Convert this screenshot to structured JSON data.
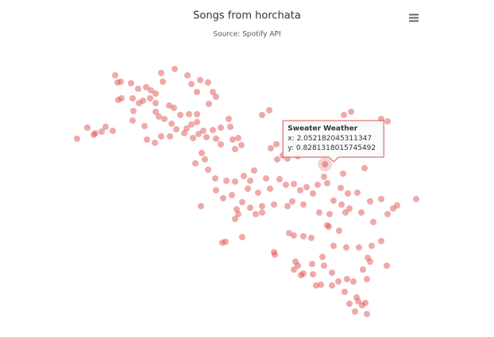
{
  "chart_data": {
    "type": "scatter",
    "title": "Songs from horchata",
    "subtitle": "Source: Spotify API",
    "color": "rgba(223,83,83,0.5)",
    "xlim": [
      -1.14,
      3.26
    ],
    "ylim": [
      -1.1,
      2.1
    ],
    "x": [
      -0.59,
      -0.56,
      -0.52,
      -0.39,
      -0.3,
      -0.2,
      -0.14,
      -0.08,
      -0.01,
      0.01,
      0.16,
      0.32,
      0.37,
      0.48,
      0.58,
      0.44,
      0.64,
      0.68,
      0.59,
      -0.55,
      -0.51,
      -0.37,
      -0.29,
      -0.24,
      -0.15,
      -0.08,
      0.09,
      0.15,
      0.23,
      0.34,
      0.44,
      0.44,
      0.37,
      -0.36,
      -0.37,
      -0.22,
      -0.08,
      -0.04,
      0.03,
      0.12,
      0.18,
      0.31,
      0.52,
      0.64,
      0.74,
      0.84,
      0.86,
      0.96,
      0.89,
      1.0,
      0.92,
      -0.19,
      -0.09,
      -0.01,
      0.1,
      0.28,
      0.39,
      0.46,
      0.56,
      -0.94,
      -0.86,
      -0.84,
      -0.76,
      -0.71,
      -0.62,
      -1.07,
      1.26,
      1.35,
      0.68,
      0.74,
      0.5,
      0.54,
      0.42,
      0.58,
      0.67,
      0.68,
      0.81,
      0.92,
      0.88,
      0.49,
      0.77,
      0.94,
      1.03,
      1.11,
      1.08,
      1.21,
      1.16,
      1.31,
      1.36,
      1.48,
      1.56,
      1.66,
      1.74,
      1.82,
      1.9,
      1.96,
      2.08,
      2.04,
      2.28,
      2.25,
      2.34,
      2.46,
      2.55,
      2.62,
      2.76,
      2.91,
      2.96,
      3.2,
      2.84,
      2.66,
      2.51,
      2.36,
      2.31,
      2.26,
      2.16,
      2.11,
      2.1,
      1.98,
      1.78,
      1.64,
      1.58,
      1.41,
      1.26,
      1.11,
      1.01,
      0.96,
      1.18,
      1.26,
      0.92,
      1.01,
      0.76,
      0.8,
      1.45,
      1.58,
      1.71,
      2.052182045311347,
      2.29,
      2.38,
      2.76,
      2.84,
      1.37,
      1.44,
      1.52,
      1.6,
      1.66,
      1.78,
      1.88,
      2.08,
      2.23,
      1.41,
      1.42,
      1.68,
      1.71,
      1.78,
      1.9,
      1.89,
      2.02,
      2.04,
      2.16,
      2.32,
      2.48,
      2.64,
      2.76,
      2.83,
      2.59,
      2.62,
      2.53,
      2.58,
      2.41,
      2.33,
      2.22,
      2.14,
      2.0,
      1.94,
      2.14,
      2.3,
      2.45,
      2.47,
      2.52,
      2.56,
      2.43,
      2.58,
      2.36,
      1.75,
      1.66
    ],
    "values": [
      1.95,
      1.86,
      1.87,
      1.85,
      1.78,
      1.8,
      1.76,
      1.72,
      1.98,
      1.87,
      2.03,
      1.95,
      1.84,
      1.89,
      1.86,
      1.74,
      1.74,
      1.68,
      1.59,
      1.64,
      1.66,
      1.66,
      1.6,
      1.63,
      1.66,
      1.6,
      1.57,
      1.54,
      1.45,
      1.46,
      1.46,
      1.36,
      1.33,
      1.5,
      1.38,
      1.31,
      1.49,
      1.43,
      1.4,
      1.34,
      1.27,
      1.28,
      1.25,
      1.26,
      1.29,
      1.4,
      1.3,
      1.16,
      1.14,
      1.07,
      1.02,
      1.14,
      1.1,
      1.18,
      1.18,
      1.22,
      1.16,
      1.21,
      1.17,
      1.29,
      1.2,
      1.22,
      1.24,
      1.3,
      1.25,
      1.15,
      1.45,
      1.51,
      1.15,
      1.08,
      0.97,
      0.89,
      0.84,
      0.76,
      0.65,
      0.5,
      0.62,
      0.61,
      0.44,
      0.3,
      0.4,
      0.26,
      0.68,
      0.62,
      0.52,
      0.47,
      0.75,
      0.65,
      0.52,
      0.64,
      0.57,
      0.58,
      0.5,
      0.54,
      0.46,
      0.57,
      0.59,
      0.67,
      0.71,
      0.53,
      0.46,
      0.47,
      0.78,
      0.36,
      0.39,
      0.27,
      0.31,
      0.39,
      0.2,
      0.1,
      0.22,
      0.27,
      0.22,
      0.32,
      0.37,
      0.2,
      0.04,
      0.22,
      0.32,
      0.36,
      0.3,
      0.32,
      0.3,
      0.28,
      0.35,
      0.2,
      0.2,
      0.22,
      0.14,
      -0.09,
      -0.16,
      -0.15,
      0.89,
      0.9,
      0.93,
      0.8281318015745492,
      1.45,
      1.49,
      1.4,
      1.37,
      1.03,
      1.08,
      0.94,
      -0.04,
      -0.07,
      -0.08,
      -0.1,
      0.06,
      -0.01,
      -0.28,
      -0.31,
      -0.4,
      -0.45,
      -0.55,
      -0.56,
      -0.43,
      -0.34,
      -0.45,
      -0.2,
      -0.22,
      -0.22,
      -0.2,
      -0.14,
      -0.45,
      -0.35,
      -0.4,
      -0.5,
      -0.62,
      -0.65,
      -0.62,
      -0.65,
      -0.7,
      -0.69,
      -0.7,
      -0.54,
      -0.78,
      -0.85,
      -0.9,
      -0.95,
      -0.92,
      -1.03,
      -1.06,
      -0.93,
      -0.57,
      -0.5
    ],
    "tooltip": {
      "name": "Sweater Weather",
      "x_prefix": "x:",
      "x": 2.052182045311347,
      "y_prefix": "y:",
      "y": 0.8281318015745492
    }
  }
}
